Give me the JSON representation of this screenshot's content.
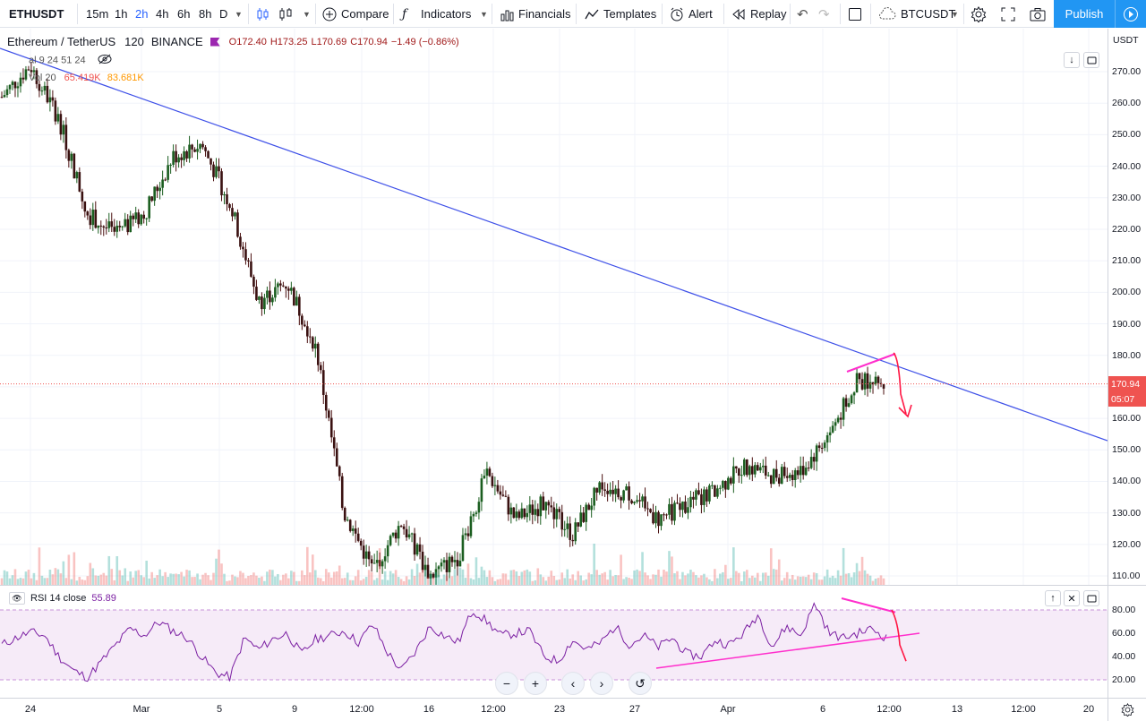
{
  "toolbar": {
    "symbol": "ETHUSDT",
    "intervals": [
      "15m",
      "1h",
      "2h",
      "4h",
      "6h",
      "8h",
      "D"
    ],
    "active_interval": "2h",
    "compare_label": "Compare",
    "indicators_label": "Indicators",
    "financials_label": "Financials",
    "templates_label": "Templates",
    "alert_label": "Alert",
    "replay_label": "Replay",
    "compare_symbol": "BTCUSDT",
    "publish_label": "Publish",
    "accent": "#2196f3"
  },
  "legend": {
    "title": "Ethereum / TetherUS",
    "interval": "120",
    "exchange": "BINANCE",
    "open": "O172.40",
    "high": "H173.25",
    "low": "L170.69",
    "close": "C170.94",
    "change": "−1.49 (−0.86%)",
    "countdown_text": "al 9 24 51 24",
    "vol_label": "Vol 20",
    "vol_value1": "65.419K",
    "vol_value2": "83.681K"
  },
  "price_axis": {
    "currency": "USDT",
    "labels": [
      "270.00",
      "260.00",
      "250.00",
      "240.00",
      "230.00",
      "220.00",
      "210.00",
      "200.00",
      "190.00",
      "180.00",
      "170.00",
      "160.00",
      "150.00",
      "140.00",
      "130.00",
      "120.00",
      "110.00"
    ],
    "last_price": "170.94",
    "countdown": "05:07",
    "last_color": "#ef5350"
  },
  "rsi": {
    "label": "RSI 14 close",
    "value": "55.89",
    "labels": [
      "80.00",
      "60.00",
      "40.00",
      "20.00"
    ],
    "color": "#7b1fa2"
  },
  "time_axis": {
    "labels": [
      "24",
      "Mar",
      "5",
      "9",
      "12:00",
      "16",
      "12:00",
      "23",
      "27",
      "Apr",
      "6",
      "12:00",
      "13",
      "12:00",
      "20"
    ]
  },
  "chart_data": {
    "type": "candlestick",
    "symbol": "ETHUSDT",
    "interval": "2h",
    "ylim": [
      105,
      280
    ],
    "path": [
      [
        "24",
        262
      ],
      [
        "24",
        272
      ],
      [
        "24",
        255
      ],
      [
        "Mar",
        225
      ],
      [
        "Mar",
        218
      ],
      [
        "5",
        225
      ],
      [
        "5",
        243
      ],
      [
        "9",
        247
      ],
      [
        "9",
        228
      ],
      [
        "9",
        197
      ],
      [
        "9",
        203
      ],
      [
        "12:00",
        183
      ],
      [
        "12:00",
        130
      ],
      [
        "12:00",
        112
      ],
      [
        "16",
        127
      ],
      [
        "16",
        110
      ],
      [
        "16",
        116
      ],
      [
        "12:00",
        143
      ],
      [
        "12:00",
        128
      ],
      [
        "23",
        133
      ],
      [
        "23",
        123
      ],
      [
        "23",
        139
      ],
      [
        "27",
        136
      ],
      [
        "27",
        128
      ],
      [
        "27",
        133
      ],
      [
        "Apr",
        137
      ],
      [
        "Apr",
        145
      ],
      [
        "Apr",
        142
      ],
      [
        "6",
        143
      ],
      [
        "6",
        155
      ],
      [
        "6",
        172
      ],
      [
        "12:00",
        170.94
      ]
    ],
    "last_price": 170.94,
    "annotations": {
      "trendline": "descending blue trendline",
      "drawings": "pink rising wedge with red down arrow"
    },
    "rsi": {
      "period": 14,
      "last": 55.89,
      "levels": [
        70,
        30
      ],
      "values": [
        50,
        56,
        61,
        58,
        40,
        28,
        22,
        36,
        50,
        64,
        58,
        70,
        62,
        56,
        40,
        26,
        22,
        56,
        46,
        55,
        60,
        42,
        55,
        58,
        62,
        52,
        68,
        44,
        28,
        44,
        66,
        58,
        52,
        80,
        70,
        58,
        60,
        62,
        40,
        36,
        54,
        46,
        52,
        66,
        50,
        58,
        48,
        56,
        42,
        40,
        54,
        50,
        60,
        76,
        48,
        66,
        58,
        86,
        60,
        56,
        60,
        64,
        55.89
      ]
    }
  },
  "nav": {
    "zoom_out": "−",
    "zoom_in": "+",
    "back": "‹",
    "forward": "›",
    "reset": "↺"
  }
}
